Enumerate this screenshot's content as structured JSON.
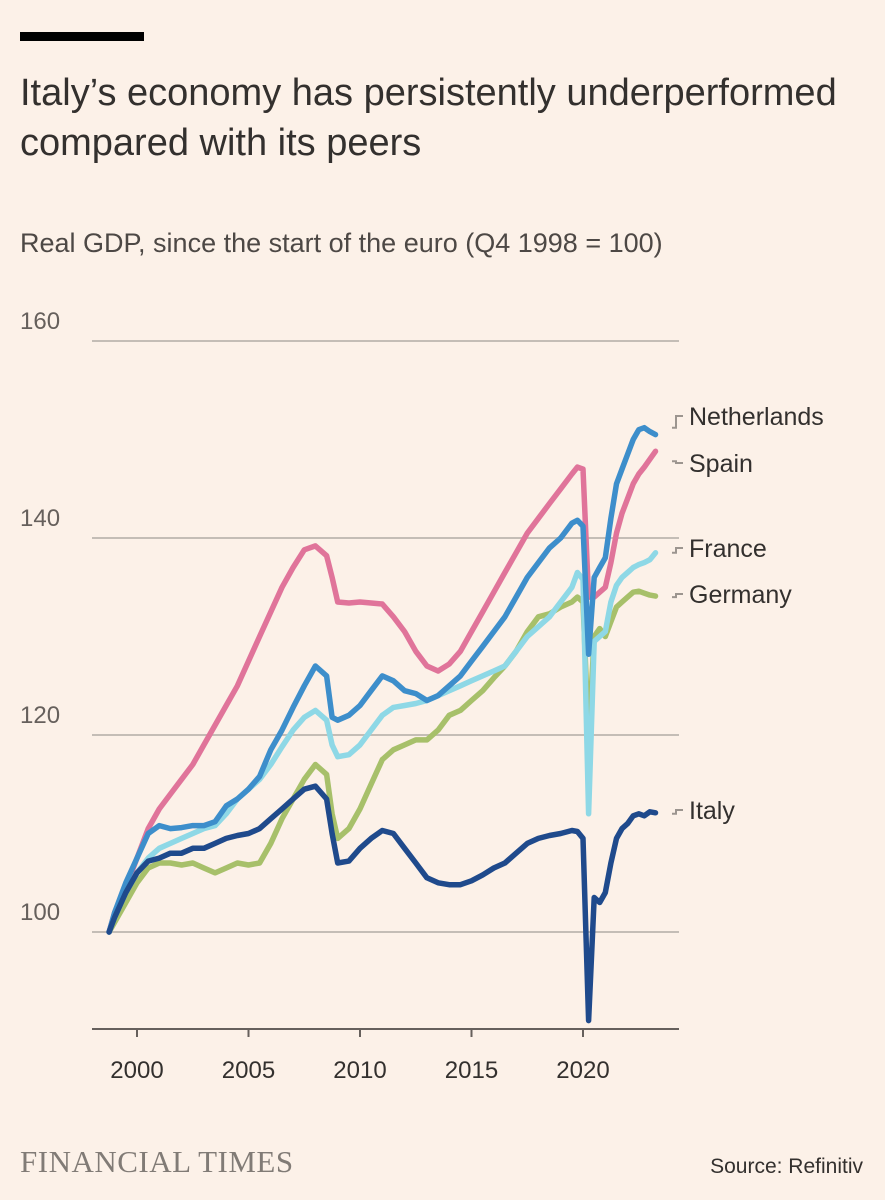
{
  "header": {
    "title": "Italy’s economy has persistently underperformed compared with its peers",
    "subtitle": "Real GDP, since the start of the euro (Q4 1998 = 100)"
  },
  "footer": {
    "logo": "FINANCIAL TIMES",
    "source": "Source: Refinitiv"
  },
  "colors": {
    "Netherlands": "#3d8ecb",
    "Spain": "#e0749a",
    "France": "#8ed8e6",
    "Germany": "#a7c06a",
    "Italy": "#1f4a8c",
    "grid": "#c4bdb6",
    "text": "#33302e"
  },
  "chart_data": {
    "type": "line",
    "ylim": [
      91,
      160
    ],
    "xlim": [
      1998.5,
      2023.9
    ],
    "y_ticks": [
      100,
      120,
      140,
      160
    ],
    "x_ticks": [
      2000,
      2005,
      2010,
      2015,
      2020
    ],
    "grid": "horizontal",
    "legend": "direct labels right",
    "series": [
      {
        "name": "Netherlands",
        "points": [
          [
            1998.75,
            100
          ],
          [
            1999,
            102
          ],
          [
            1999.5,
            105
          ],
          [
            2000,
            107.5
          ],
          [
            2000.5,
            110
          ],
          [
            2001,
            110.8
          ],
          [
            2001.5,
            110.5
          ],
          [
            2002,
            110.6
          ],
          [
            2002.5,
            110.8
          ],
          [
            2003,
            110.8
          ],
          [
            2003.5,
            111.2
          ],
          [
            2004,
            112.8
          ],
          [
            2004.5,
            113.5
          ],
          [
            2005,
            114.5
          ],
          [
            2005.5,
            115.8
          ],
          [
            2006,
            118.5
          ],
          [
            2006.5,
            120.5
          ],
          [
            2007,
            122.8
          ],
          [
            2007.5,
            125
          ],
          [
            2008,
            127
          ],
          [
            2008.5,
            126
          ],
          [
            2008.75,
            121.8
          ],
          [
            2009,
            121.5
          ],
          [
            2009.5,
            122
          ],
          [
            2010,
            123
          ],
          [
            2010.5,
            124.5
          ],
          [
            2011,
            126
          ],
          [
            2011.5,
            125.5
          ],
          [
            2012,
            124.5
          ],
          [
            2012.5,
            124.2
          ],
          [
            2013,
            123.5
          ],
          [
            2013.5,
            124
          ],
          [
            2014,
            125
          ],
          [
            2014.5,
            126
          ],
          [
            2015,
            127.5
          ],
          [
            2015.5,
            129
          ],
          [
            2016,
            130.5
          ],
          [
            2016.5,
            132
          ],
          [
            2017,
            134
          ],
          [
            2017.5,
            136
          ],
          [
            2018,
            137.5
          ],
          [
            2018.5,
            139
          ],
          [
            2019,
            140
          ],
          [
            2019.5,
            141.5
          ],
          [
            2019.75,
            141.8
          ],
          [
            2020,
            141.2
          ],
          [
            2020.25,
            128.2
          ],
          [
            2020.5,
            136
          ],
          [
            2020.75,
            137
          ],
          [
            2021,
            138
          ],
          [
            2021.25,
            142
          ],
          [
            2021.5,
            145.5
          ],
          [
            2021.75,
            147
          ],
          [
            2022,
            148.5
          ],
          [
            2022.25,
            150
          ],
          [
            2022.5,
            151
          ],
          [
            2022.75,
            151.2
          ],
          [
            2023,
            150.8
          ],
          [
            2023.25,
            150.5
          ]
        ]
      },
      {
        "name": "Spain",
        "points": [
          [
            1998.75,
            100
          ],
          [
            1999,
            102
          ],
          [
            1999.5,
            104.5
          ],
          [
            2000,
            107.5
          ],
          [
            2000.5,
            110.5
          ],
          [
            2001,
            112.5
          ],
          [
            2001.5,
            114
          ],
          [
            2002,
            115.5
          ],
          [
            2002.5,
            117
          ],
          [
            2003,
            119
          ],
          [
            2003.5,
            121
          ],
          [
            2004,
            123
          ],
          [
            2004.5,
            125
          ],
          [
            2005,
            127.5
          ],
          [
            2005.5,
            130
          ],
          [
            2006,
            132.5
          ],
          [
            2006.5,
            135
          ],
          [
            2007,
            137
          ],
          [
            2007.5,
            138.8
          ],
          [
            2008,
            139.2
          ],
          [
            2008.5,
            138.2
          ],
          [
            2008.75,
            136
          ],
          [
            2009,
            133.5
          ],
          [
            2009.5,
            133.4
          ],
          [
            2010,
            133.5
          ],
          [
            2010.5,
            133.4
          ],
          [
            2011,
            133.3
          ],
          [
            2011.5,
            132
          ],
          [
            2012,
            130.5
          ],
          [
            2012.5,
            128.5
          ],
          [
            2013,
            127
          ],
          [
            2013.5,
            126.5
          ],
          [
            2014,
            127.2
          ],
          [
            2014.5,
            128.5
          ],
          [
            2015,
            130.5
          ],
          [
            2015.5,
            132.5
          ],
          [
            2016,
            134.5
          ],
          [
            2016.5,
            136.5
          ],
          [
            2017,
            138.5
          ],
          [
            2017.5,
            140.5
          ],
          [
            2018,
            142
          ],
          [
            2018.5,
            143.5
          ],
          [
            2019,
            145
          ],
          [
            2019.5,
            146.5
          ],
          [
            2019.75,
            147.2
          ],
          [
            2020,
            147
          ],
          [
            2020.25,
            134
          ],
          [
            2020.5,
            134
          ],
          [
            2020.75,
            134.5
          ],
          [
            2021,
            135
          ],
          [
            2021.25,
            137.5
          ],
          [
            2021.5,
            140.5
          ],
          [
            2021.75,
            142.5
          ],
          [
            2022,
            144
          ],
          [
            2022.25,
            145.5
          ],
          [
            2022.5,
            146.5
          ],
          [
            2022.75,
            147.2
          ],
          [
            2023,
            148
          ],
          [
            2023.25,
            148.8
          ]
        ]
      },
      {
        "name": "France",
        "points": [
          [
            1998.75,
            100
          ],
          [
            1999,
            101.5
          ],
          [
            1999.5,
            104
          ],
          [
            2000,
            106
          ],
          [
            2000.5,
            107.5
          ],
          [
            2001,
            108.5
          ],
          [
            2001.5,
            109
          ],
          [
            2002,
            109.5
          ],
          [
            2002.5,
            110
          ],
          [
            2003,
            110.5
          ],
          [
            2003.5,
            110.8
          ],
          [
            2004,
            112
          ],
          [
            2004.5,
            113.5
          ],
          [
            2005,
            114.5
          ],
          [
            2005.5,
            115.5
          ],
          [
            2006,
            117
          ],
          [
            2006.5,
            118.8
          ],
          [
            2007,
            120.5
          ],
          [
            2007.5,
            121.8
          ],
          [
            2008,
            122.5
          ],
          [
            2008.5,
            121.5
          ],
          [
            2008.75,
            119
          ],
          [
            2009,
            117.8
          ],
          [
            2009.5,
            118
          ],
          [
            2010,
            119
          ],
          [
            2010.5,
            120.5
          ],
          [
            2011,
            122
          ],
          [
            2011.5,
            122.8
          ],
          [
            2012,
            123
          ],
          [
            2012.5,
            123.2
          ],
          [
            2013,
            123.5
          ],
          [
            2013.5,
            124
          ],
          [
            2014,
            124.5
          ],
          [
            2014.5,
            125
          ],
          [
            2015,
            125.5
          ],
          [
            2015.5,
            126
          ],
          [
            2016,
            126.5
          ],
          [
            2016.5,
            127
          ],
          [
            2017,
            128.5
          ],
          [
            2017.5,
            130
          ],
          [
            2018,
            131
          ],
          [
            2018.5,
            132
          ],
          [
            2019,
            133.5
          ],
          [
            2019.5,
            135
          ],
          [
            2019.75,
            136.5
          ],
          [
            2020,
            135.8
          ],
          [
            2020.25,
            112
          ],
          [
            2020.5,
            129.5
          ],
          [
            2020.75,
            130
          ],
          [
            2021,
            130.5
          ],
          [
            2021.25,
            133.5
          ],
          [
            2021.5,
            135.2
          ],
          [
            2021.75,
            136
          ],
          [
            2022,
            136.5
          ],
          [
            2022.25,
            137
          ],
          [
            2022.5,
            137.3
          ],
          [
            2022.75,
            137.5
          ],
          [
            2023,
            137.8
          ],
          [
            2023.25,
            138.5
          ]
        ]
      },
      {
        "name": "Germany",
        "points": [
          [
            1998.75,
            100
          ],
          [
            1999,
            101
          ],
          [
            1999.5,
            103
          ],
          [
            2000,
            105
          ],
          [
            2000.5,
            106.5
          ],
          [
            2001,
            107
          ],
          [
            2001.5,
            107
          ],
          [
            2002,
            106.8
          ],
          [
            2002.5,
            107
          ],
          [
            2003,
            106.5
          ],
          [
            2003.5,
            106
          ],
          [
            2004,
            106.5
          ],
          [
            2004.5,
            107
          ],
          [
            2005,
            106.8
          ],
          [
            2005.5,
            107
          ],
          [
            2006,
            109
          ],
          [
            2006.5,
            111.5
          ],
          [
            2007,
            113.5
          ],
          [
            2007.5,
            115.5
          ],
          [
            2008,
            117
          ],
          [
            2008.5,
            116
          ],
          [
            2008.75,
            112
          ],
          [
            2009,
            109.5
          ],
          [
            2009.5,
            110.5
          ],
          [
            2010,
            112.5
          ],
          [
            2010.5,
            115
          ],
          [
            2011,
            117.5
          ],
          [
            2011.5,
            118.5
          ],
          [
            2012,
            119
          ],
          [
            2012.5,
            119.5
          ],
          [
            2013,
            119.5
          ],
          [
            2013.5,
            120.5
          ],
          [
            2014,
            122
          ],
          [
            2014.5,
            122.5
          ],
          [
            2015,
            123.5
          ],
          [
            2015.5,
            124.5
          ],
          [
            2016,
            125.8
          ],
          [
            2016.5,
            127
          ],
          [
            2017,
            128.5
          ],
          [
            2017.5,
            130.5
          ],
          [
            2018,
            132
          ],
          [
            2018.5,
            132.3
          ],
          [
            2019,
            133
          ],
          [
            2019.5,
            133.5
          ],
          [
            2019.75,
            134
          ],
          [
            2020,
            133.5
          ],
          [
            2020.25,
            119.5
          ],
          [
            2020.5,
            130
          ],
          [
            2020.75,
            130.8
          ],
          [
            2021,
            130
          ],
          [
            2021.25,
            131.5
          ],
          [
            2021.5,
            133
          ],
          [
            2021.75,
            133.5
          ],
          [
            2022,
            134
          ],
          [
            2022.25,
            134.5
          ],
          [
            2022.5,
            134.6
          ],
          [
            2022.75,
            134.4
          ],
          [
            2023,
            134.2
          ],
          [
            2023.25,
            134.1
          ]
        ]
      },
      {
        "name": "Italy",
        "points": [
          [
            1998.75,
            100
          ],
          [
            1999,
            101.5
          ],
          [
            1999.5,
            104
          ],
          [
            2000,
            106
          ],
          [
            2000.5,
            107.2
          ],
          [
            2001,
            107.5
          ],
          [
            2001.5,
            108
          ],
          [
            2002,
            108
          ],
          [
            2002.5,
            108.5
          ],
          [
            2003,
            108.5
          ],
          [
            2003.5,
            109
          ],
          [
            2004,
            109.5
          ],
          [
            2004.5,
            109.8
          ],
          [
            2005,
            110
          ],
          [
            2005.5,
            110.5
          ],
          [
            2006,
            111.5
          ],
          [
            2006.5,
            112.5
          ],
          [
            2007,
            113.5
          ],
          [
            2007.5,
            114.5
          ],
          [
            2008,
            114.8
          ],
          [
            2008.5,
            113.5
          ],
          [
            2008.75,
            110
          ],
          [
            2009,
            107
          ],
          [
            2009.5,
            107.2
          ],
          [
            2010,
            108.5
          ],
          [
            2010.5,
            109.5
          ],
          [
            2011,
            110.3
          ],
          [
            2011.5,
            110
          ],
          [
            2012,
            108.5
          ],
          [
            2012.5,
            107
          ],
          [
            2013,
            105.5
          ],
          [
            2013.5,
            105
          ],
          [
            2014,
            104.8
          ],
          [
            2014.5,
            104.8
          ],
          [
            2015,
            105.2
          ],
          [
            2015.5,
            105.8
          ],
          [
            2016,
            106.5
          ],
          [
            2016.5,
            107
          ],
          [
            2017,
            108
          ],
          [
            2017.5,
            109
          ],
          [
            2018,
            109.5
          ],
          [
            2018.5,
            109.8
          ],
          [
            2019,
            110
          ],
          [
            2019.5,
            110.3
          ],
          [
            2019.75,
            110.2
          ],
          [
            2020,
            109.5
          ],
          [
            2020.25,
            91
          ],
          [
            2020.5,
            103.5
          ],
          [
            2020.75,
            103
          ],
          [
            2021,
            104
          ],
          [
            2021.25,
            107
          ],
          [
            2021.5,
            109.5
          ],
          [
            2021.75,
            110.5
          ],
          [
            2022,
            111
          ],
          [
            2022.25,
            111.8
          ],
          [
            2022.5,
            112
          ],
          [
            2022.75,
            111.8
          ],
          [
            2023,
            112.2
          ],
          [
            2023.25,
            112.1
          ]
        ]
      }
    ],
    "labels": [
      {
        "name": "Netherlands",
        "text": "Netherlands",
        "anchor_value": 151.2
      },
      {
        "name": "Spain",
        "text": "Spain",
        "anchor_value": 147.8
      },
      {
        "name": "France",
        "text": "France",
        "anchor_value": 138.5
      },
      {
        "name": "Germany",
        "text": "Germany",
        "anchor_value": 134.0
      },
      {
        "name": "Italy",
        "text": "Italy",
        "anchor_value": 112.0
      }
    ]
  }
}
